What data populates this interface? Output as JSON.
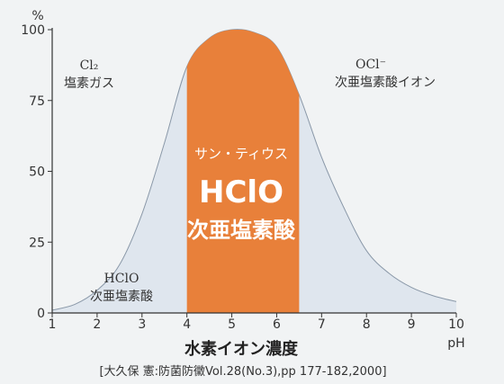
{
  "chart_data": {
    "type": "area",
    "x": [
      1,
      1.5,
      2,
      2.5,
      3,
      3.5,
      4,
      4.5,
      5,
      5.5,
      6,
      6.5,
      7,
      7.5,
      8,
      8.5,
      9,
      9.5,
      10
    ],
    "series": [
      {
        "values": [
          1,
          3,
          8,
          17,
          35,
          60,
          87,
          97,
          100,
          99,
          94,
          77,
          55,
          37,
          22,
          14,
          9,
          6,
          4
        ]
      }
    ],
    "xlim": [
      1,
      10
    ],
    "ylim": [
      0,
      100
    ],
    "xticks": [
      "1",
      "2",
      "3",
      "4",
      "5",
      "6",
      "7",
      "8",
      "9",
      "10"
    ],
    "yticks": [
      "0",
      "25",
      "50",
      "75",
      "100"
    ],
    "y_unit": "%",
    "x_unit": "pH",
    "xlabel": "水素イオン濃度",
    "citation": "[大久保 憲:防菌防黴Vol.28(No.3),pp 177-182,2000]",
    "highlight": {
      "x_range": [
        4,
        6.5
      ],
      "color": "#e8803a",
      "subtitle": "サン・ティウス",
      "formula": "HClO",
      "name": "次亜塩素酸"
    },
    "annotations": {
      "cl2_formula": "Cl₂",
      "cl2_name": "塩素ガス",
      "ocl_formula": "OCl⁻",
      "ocl_name": "次亜塩素酸イオン",
      "hclo_formula": "HClO",
      "hclo_name": "次亜塩素酸"
    },
    "colors": {
      "area_fill": "#dfe6ee",
      "area_stroke": "#8a98a8",
      "background": "#f1f3f4"
    }
  }
}
